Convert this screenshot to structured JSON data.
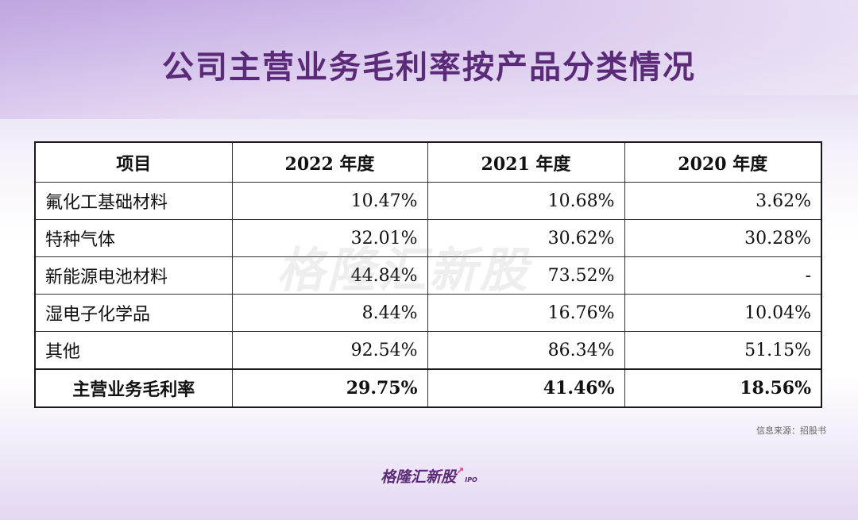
{
  "title": "公司主营业务毛利率按产品分类情况",
  "table": {
    "headers": [
      "项目",
      "2022 年度",
      "2021 年度",
      "2020 年度"
    ],
    "rows": [
      [
        "氟化工基础材料",
        "10.47%",
        "10.68%",
        "3.62%"
      ],
      [
        "特种气体",
        "32.01%",
        "30.62%",
        "30.28%"
      ],
      [
        "新能源电池材料",
        "44.84%",
        "73.52%",
        "-"
      ],
      [
        "湿电子化学品",
        "8.44%",
        "16.76%",
        "10.04%"
      ],
      [
        "其他",
        "92.54%",
        "86.34%",
        "51.15%"
      ]
    ],
    "total": [
      "主营业务毛利率",
      "29.75%",
      "41.46%",
      "18.56%"
    ]
  },
  "watermark": "格隆汇新股",
  "source": "信息来源：招股书",
  "brand": {
    "name": "格隆汇新股",
    "suffix": "IPO"
  },
  "colors": {
    "title": "#5b2a78",
    "brand_arrow": "#e0338a"
  }
}
